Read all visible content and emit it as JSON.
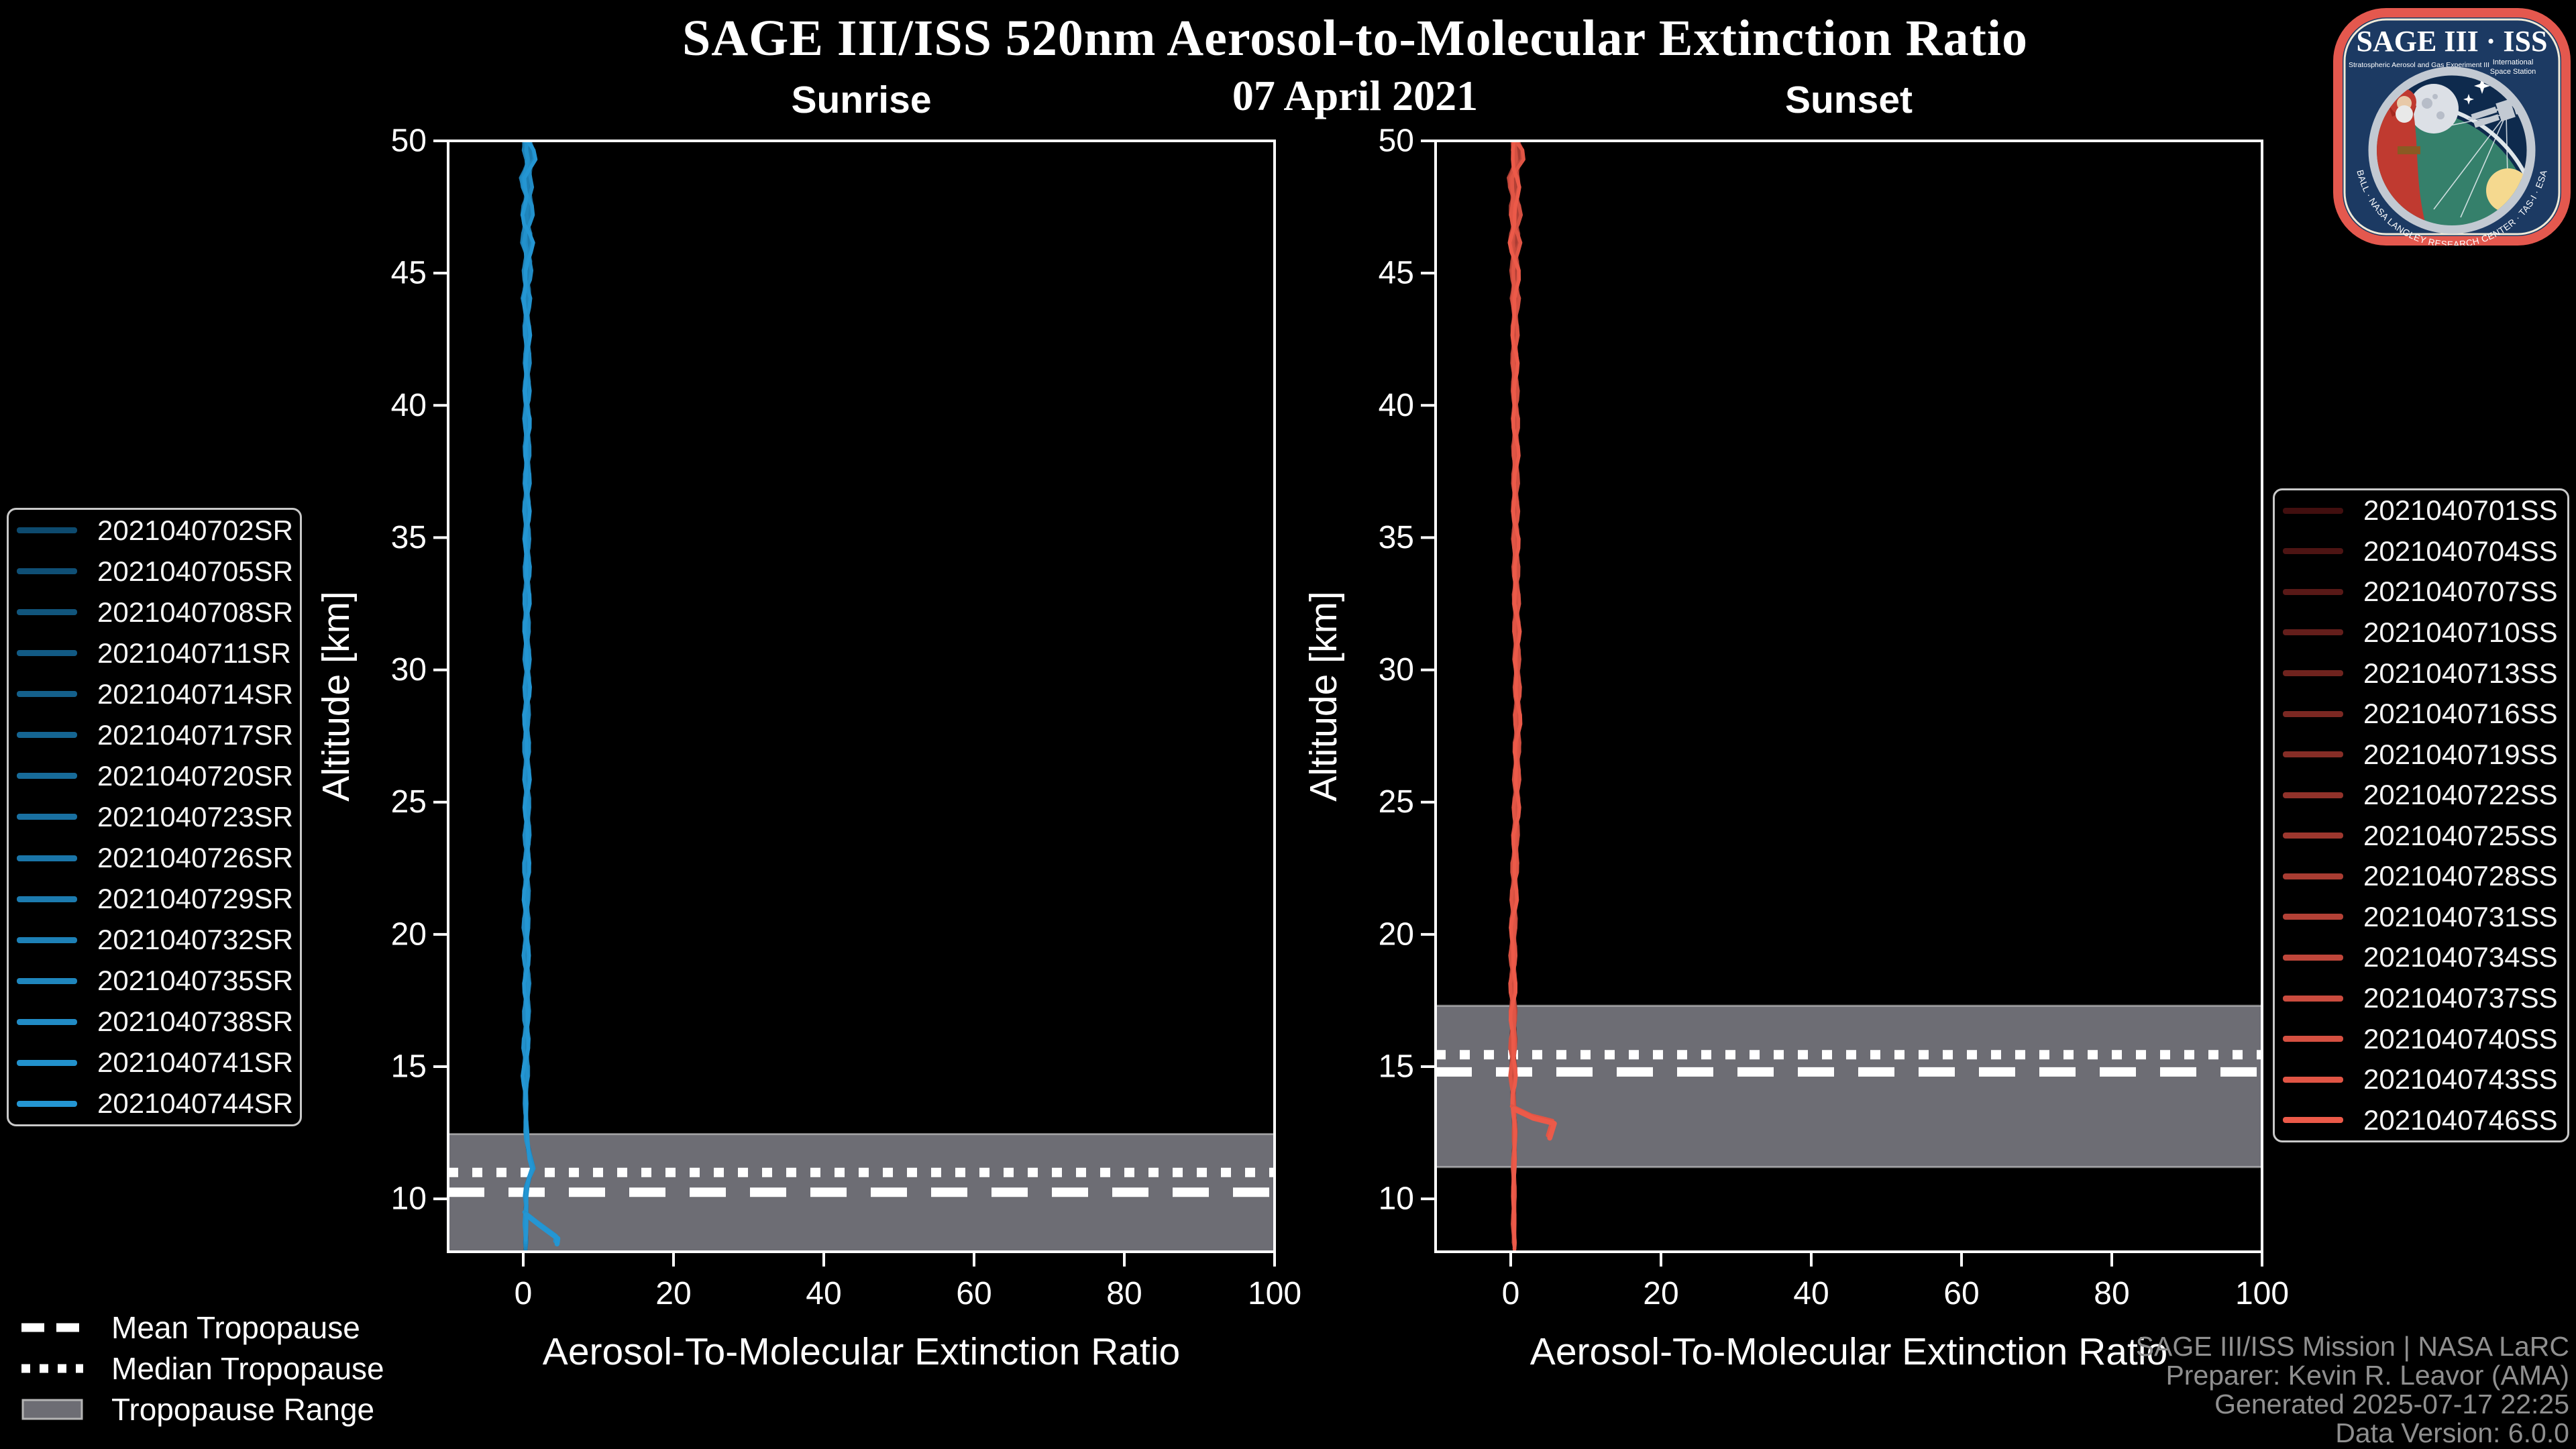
{
  "header": {
    "title": "SAGE III/ISS 520nm Aerosol-to-Molecular Extinction Ratio",
    "date": "07 April 2021"
  },
  "footer": {
    "lines": [
      "SAGE III/ISS Mission | NASA LaRC",
      "Preparer: Kevin R. Leavor (AMA)",
      "Generated 2025-07-17 22:25",
      "Data Version: 6.0.0"
    ],
    "color": "#8f8f8f"
  },
  "logo": {
    "title": "SAGE III · ISS",
    "subtitle_left": "Stratospheric Aerosol and Gas Experiment III",
    "subtitle_right_1": "International",
    "subtitle_right_2": "Space Station",
    "ring_text": "BALL · NASA LANGLEY RESEARCH CENTER · TAS-I · ESA",
    "border_color": "#e4584e",
    "bg_color": "#1c3a63"
  },
  "tropopause_legend": {
    "items": [
      {
        "label": "Mean Tropopause",
        "style": "dashed"
      },
      {
        "label": "Median Tropopause",
        "style": "dotted"
      },
      {
        "label": "Tropopause Range",
        "style": "band"
      }
    ]
  },
  "chart_data": [
    {
      "type": "line",
      "title": "Sunrise",
      "xlabel": "Aerosol-To-Molecular Extinction Ratio",
      "ylabel": "Altitude [km]",
      "xlim": [
        -10,
        100
      ],
      "ylim": [
        8,
        50
      ],
      "xticks": [
        0,
        20,
        40,
        60,
        80,
        100
      ],
      "yticks": [
        10,
        15,
        20,
        25,
        30,
        35,
        40,
        45,
        50
      ],
      "grid": false,
      "band_color": "#6d6d74",
      "tropopause": {
        "mean_km": 10.25,
        "median_km": 11.0,
        "range_km": [
          8.0,
          12.45
        ]
      },
      "profile_ratio_alt": [
        [
          0.5,
          50
        ],
        [
          0.9,
          49.3
        ],
        [
          0.3,
          48.6
        ],
        [
          0.7,
          47.8
        ],
        [
          0.4,
          47
        ],
        [
          0.6,
          45.5
        ],
        [
          0.4,
          44
        ],
        [
          0.55,
          42
        ],
        [
          0.45,
          40
        ],
        [
          0.55,
          38
        ],
        [
          0.45,
          36
        ],
        [
          0.55,
          34
        ],
        [
          0.45,
          32
        ],
        [
          0.55,
          30
        ],
        [
          0.45,
          28
        ],
        [
          0.5,
          26
        ],
        [
          0.55,
          24
        ],
        [
          0.45,
          22
        ],
        [
          0.4,
          20
        ],
        [
          0.5,
          18
        ],
        [
          0.4,
          16
        ],
        [
          0.3,
          14
        ],
        [
          0.35,
          13
        ],
        [
          0.45,
          12.3
        ],
        [
          0.85,
          11.6
        ],
        [
          1.35,
          11.1
        ],
        [
          0.6,
          10.7
        ],
        [
          0.3,
          10.2
        ],
        [
          0.4,
          9.7
        ],
        [
          0.3,
          9.2
        ],
        [
          0.35,
          8.6
        ],
        [
          0.3,
          8.05
        ]
      ],
      "profile_min_alt_km": 8.05,
      "spur_ratio_alt": [
        [
          0.4,
          9.4
        ],
        [
          2.2,
          9.0
        ],
        [
          4.6,
          8.5
        ],
        [
          4.5,
          8.3
        ]
      ],
      "series": [
        {
          "label": "2021040702SR",
          "color": "#0d4a6e"
        },
        {
          "label": "2021040705SR",
          "color": "#0f4f75"
        },
        {
          "label": "2021040708SR",
          "color": "#11557c"
        },
        {
          "label": "2021040711SR",
          "color": "#125a84"
        },
        {
          "label": "2021040714SR",
          "color": "#14608b"
        },
        {
          "label": "2021040717SR",
          "color": "#156592"
        },
        {
          "label": "2021040720SR",
          "color": "#176b99"
        },
        {
          "label": "2021040723SR",
          "color": "#1970a1"
        },
        {
          "label": "2021040726SR",
          "color": "#1a75a8"
        },
        {
          "label": "2021040729SR",
          "color": "#1c7baf"
        },
        {
          "label": "2021040732SR",
          "color": "#1d80b6"
        },
        {
          "label": "2021040735SR",
          "color": "#1f86bd"
        },
        {
          "label": "2021040738SR",
          "color": "#218bc5"
        },
        {
          "label": "2021040741SR",
          "color": "#2291cc"
        },
        {
          "label": "2021040744SR",
          "color": "#2496d3"
        }
      ]
    },
    {
      "type": "line",
      "title": "Sunset",
      "xlabel": "Aerosol-To-Molecular Extinction Ratio",
      "ylabel": "Altitude [km]",
      "xlim": [
        -10,
        100
      ],
      "ylim": [
        8,
        50
      ],
      "xticks": [
        0,
        20,
        40,
        60,
        80,
        100
      ],
      "yticks": [
        10,
        15,
        20,
        25,
        30,
        35,
        40,
        45,
        50
      ],
      "grid": false,
      "band_color": "#6d6d74",
      "tropopause": {
        "mean_km": 14.8,
        "median_km": 15.45,
        "range_km": [
          11.2,
          17.3
        ]
      },
      "profile_ratio_alt": [
        [
          0.6,
          50
        ],
        [
          1.1,
          49.4
        ],
        [
          0.3,
          48.7
        ],
        [
          0.6,
          47.5
        ],
        [
          0.5,
          46
        ],
        [
          0.6,
          44
        ],
        [
          0.5,
          42
        ],
        [
          0.6,
          40
        ],
        [
          0.65,
          38
        ],
        [
          0.6,
          36
        ],
        [
          0.7,
          34
        ],
        [
          0.75,
          32
        ],
        [
          0.85,
          30
        ],
        [
          0.9,
          28
        ],
        [
          0.8,
          26
        ],
        [
          0.7,
          24
        ],
        [
          0.5,
          22
        ],
        [
          0.35,
          20
        ],
        [
          0.3,
          18
        ],
        [
          0.35,
          16.5
        ],
        [
          0.3,
          15.5
        ],
        [
          0.35,
          14.5
        ],
        [
          0.3,
          13.8
        ],
        [
          0.45,
          13.2
        ],
        [
          0.55,
          12.6
        ],
        [
          0.5,
          12
        ],
        [
          0.4,
          11
        ],
        [
          0.45,
          10
        ],
        [
          0.4,
          9
        ],
        [
          0.5,
          8.1
        ]
      ],
      "profile_min_alt_km": 8.1,
      "spur_ratio_alt": [
        [
          0.4,
          13.4
        ],
        [
          3.0,
          13.05
        ],
        [
          5.8,
          12.85
        ],
        [
          5.2,
          12.3
        ]
      ],
      "series": [
        {
          "label": "2021040701SS",
          "color": "#420f0f"
        },
        {
          "label": "2021040704SS",
          "color": "#4d1413"
        },
        {
          "label": "2021040707SS",
          "color": "#591917"
        },
        {
          "label": "2021040710SS",
          "color": "#641e1b"
        },
        {
          "label": "2021040713SS",
          "color": "#6f231e"
        },
        {
          "label": "2021040716SS",
          "color": "#7b2822"
        },
        {
          "label": "2021040719SS",
          "color": "#862d26"
        },
        {
          "label": "2021040722SS",
          "color": "#91322a"
        },
        {
          "label": "2021040725SS",
          "color": "#9d372e"
        },
        {
          "label": "2021040728SS",
          "color": "#a83c32"
        },
        {
          "label": "2021040731SS",
          "color": "#b34136"
        },
        {
          "label": "2021040734SS",
          "color": "#bf463a"
        },
        {
          "label": "2021040737SS",
          "color": "#ca4b3e"
        },
        {
          "label": "2021040740SS",
          "color": "#d55041"
        },
        {
          "label": "2021040743SS",
          "color": "#e15545"
        },
        {
          "label": "2021040746SS",
          "color": "#ec5a49"
        }
      ]
    }
  ]
}
